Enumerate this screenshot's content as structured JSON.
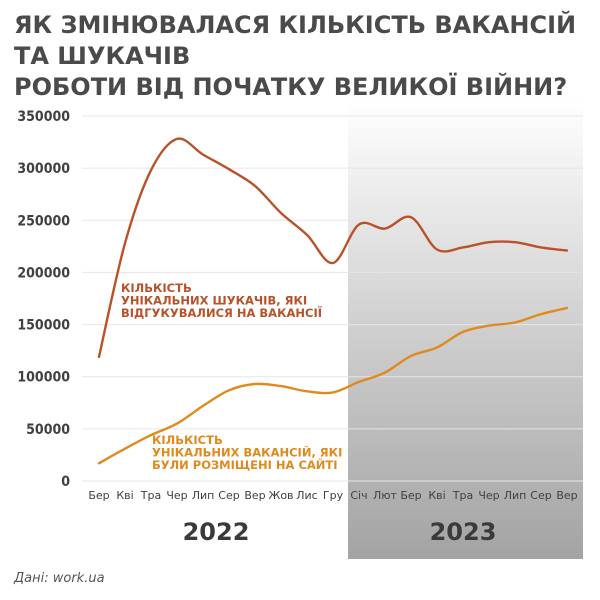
{
  "title_lines": [
    "ЯК ЗМІНЮВАЛАСЯ КІЛЬКІСТЬ ВАКАНСІЙ ТА ШУКАЧІВ",
    "РОБОТИ ВІД ПОЧАТКУ ВЕЛИКОЇ ВІЙНИ?"
  ],
  "source": "Дані: work.ua",
  "colors": {
    "seekers": "#b9522a",
    "vacancies": "#e08a1e",
    "shade_2023": "#a3a3a3"
  },
  "chart_data": {
    "type": "line",
    "title": "ЯК ЗМІНЮВАЛАСЯ КІЛЬКІСТЬ ВАКАНСІЙ ТА ШУКАЧІВ РОБОТИ ВІД ПОЧАТКУ ВЕЛИКОЇ ВІЙНИ?",
    "categories": [
      "Бер",
      "Кві",
      "Тра",
      "Чер",
      "Лип",
      "Сер",
      "Вер",
      "Жов",
      "Лис",
      "Гру",
      "Січ",
      "Лют",
      "Бер",
      "Кві",
      "Тра",
      "Чер",
      "Лип",
      "Сер",
      "Вер"
    ],
    "years": [
      {
        "label": "2022",
        "from_index": 0,
        "to_index": 9,
        "shaded": false
      },
      {
        "label": "2023",
        "from_index": 10,
        "to_index": 18,
        "shaded": true
      }
    ],
    "y_ticks": [
      0,
      50000,
      100000,
      150000,
      200000,
      250000,
      300000,
      350000
    ],
    "y_tick_labels": [
      "0",
      "50000",
      "100000",
      "150000",
      "200000",
      "250000",
      "300000",
      "350000"
    ],
    "ylim": [
      0,
      350000
    ],
    "grid": true,
    "series": [
      {
        "name": "КІЛЬКІСТЬ УНІКАЛЬНИХ ШУКАЧІВ, ЯКІ ВІДГУКУВАЛИСЯ НА ВАКАНСІЇ",
        "label_lines": [
          "КІЛЬКІСТЬ",
          "УНІКАЛЬНИХ ШУКАЧІВ, ЯКІ",
          "ВІДГУКУВАЛИСЯ НА ВАКАНСІЇ"
        ],
        "color": "#b9522a",
        "values": [
          119000,
          228000,
          298000,
          328000,
          313000,
          299000,
          283000,
          257000,
          236000,
          209000,
          246000,
          242000,
          253000,
          222000,
          224000,
          229000,
          229000,
          224000,
          221000
        ]
      },
      {
        "name": "КІЛЬКІСТЬ УНІКАЛЬНИХ ВАКАНСІЙ, ЯКІ БУЛИ РОЗМІЩЕНІ НА САЙТІ",
        "label_lines": [
          "КІЛЬКІСТЬ",
          "УНІКАЛЬНИХ ВАКАНСІЙ, ЯКІ",
          "БУЛИ РОЗМІЩЕНІ НА САЙТІ"
        ],
        "color": "#e08a1e",
        "values": [
          17000,
          31000,
          44000,
          55000,
          72000,
          87000,
          93000,
          91000,
          86000,
          85000,
          95000,
          104000,
          120000,
          128000,
          143000,
          149000,
          152000,
          160000,
          166000
        ]
      }
    ]
  }
}
